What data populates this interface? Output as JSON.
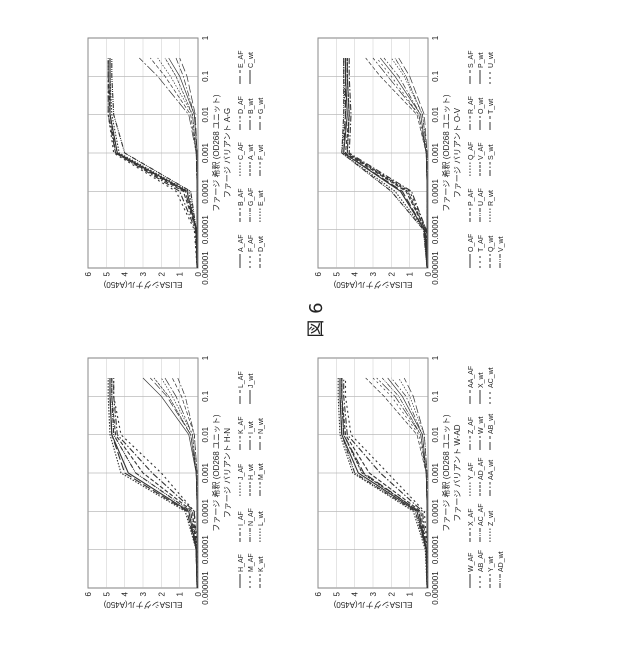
{
  "figure_label": "図 6",
  "chart_data": [
    {
      "type": "line",
      "title": "ファージ バリアント A-G",
      "xlabel": "ファージ 希釈 (OD268 ユニット)",
      "ylabel": "ELISAシグナル(A450)",
      "x_scale": "log",
      "xlim": [
        1e-06,
        1
      ],
      "ylim": [
        0,
        6
      ],
      "grid": true,
      "x_ticks": [
        "0.000001",
        "0.00001",
        "0.0001",
        "0.001",
        "0.01",
        "0.1",
        "1"
      ],
      "y_ticks": [
        "0",
        "1",
        "2",
        "3",
        "4",
        "5",
        "6"
      ],
      "legend": [
        "A_AF",
        "B_AF",
        "C_AF",
        "D_AF",
        "E_AF",
        "F_AF",
        "G_AF",
        "A_wt",
        "B_wt",
        "C_wt",
        "D_wt",
        "E_wt",
        "F_wt",
        "G_wt"
      ],
      "x": [
        1e-06,
        1e-05,
        0.0001,
        0.001,
        0.01,
        0.1,
        0.3
      ],
      "series": [
        {
          "name": "A_AF",
          "values": [
            0.05,
            0.1,
            0.6,
            4.4,
            4.8,
            4.8,
            4.8
          ]
        },
        {
          "name": "B_AF",
          "values": [
            0.05,
            0.1,
            0.8,
            4.5,
            4.8,
            4.9,
            4.9
          ]
        },
        {
          "name": "C_AF",
          "values": [
            0.05,
            0.1,
            0.5,
            4.3,
            4.7,
            4.8,
            4.8
          ]
        },
        {
          "name": "D_AF",
          "values": [
            0.05,
            0.15,
            1.0,
            4.5,
            4.9,
            4.9,
            4.9
          ]
        },
        {
          "name": "E_AF",
          "values": [
            0.05,
            0.1,
            0.7,
            4.4,
            4.8,
            4.8,
            4.8
          ]
        },
        {
          "name": "F_AF",
          "values": [
            0.05,
            0.2,
            1.2,
            4.6,
            4.9,
            4.9,
            4.9
          ]
        },
        {
          "name": "G_AF",
          "values": [
            0.05,
            0.1,
            0.4,
            4.0,
            4.6,
            4.7,
            4.7
          ]
        },
        {
          "name": "A_wt",
          "values": [
            0.05,
            0.05,
            0.05,
            0.1,
            0.3,
            1.2,
            1.8
          ]
        },
        {
          "name": "B_wt",
          "values": [
            0.05,
            0.05,
            0.05,
            0.1,
            0.5,
            2.2,
            3.2
          ]
        },
        {
          "name": "C_wt",
          "values": [
            0.05,
            0.05,
            0.05,
            0.05,
            0.2,
            1.0,
            1.6
          ]
        },
        {
          "name": "D_wt",
          "values": [
            0.05,
            0.05,
            0.05,
            0.1,
            0.4,
            1.8,
            2.6
          ]
        },
        {
          "name": "E_wt",
          "values": [
            0.05,
            0.05,
            0.05,
            0.1,
            0.3,
            1.5,
            2.2
          ]
        },
        {
          "name": "F_wt",
          "values": [
            0.05,
            0.05,
            0.05,
            0.05,
            0.2,
            0.8,
            1.2
          ]
        },
        {
          "name": "G_wt",
          "values": [
            0.05,
            0.05,
            0.05,
            0.05,
            0.15,
            0.6,
            1.0
          ]
        }
      ]
    },
    {
      "type": "line",
      "title": "ファージ バリアント H-N",
      "xlabel": "ファージ 希釈 (OD268 ユニット)",
      "ylabel": "ELISAシグナル(A450)",
      "x_scale": "log",
      "xlim": [
        1e-06,
        1
      ],
      "ylim": [
        0,
        6
      ],
      "grid": true,
      "x_ticks": [
        "0.000001",
        "0.00001",
        "0.0001",
        "0.001",
        "0.01",
        "0.1",
        "1"
      ],
      "y_ticks": [
        "0",
        "1",
        "2",
        "3",
        "4",
        "5",
        "6"
      ],
      "legend": [
        "H_AF",
        "I_AF",
        "J_AF",
        "K_AF",
        "L_AF",
        "M_AF",
        "N_AF",
        "H_wt",
        "I_wt",
        "J_wt",
        "K_wt",
        "L_wt",
        "M_wt",
        "N_wt"
      ],
      "x": [
        1e-06,
        1e-05,
        0.0001,
        0.001,
        0.01,
        0.1,
        0.3
      ],
      "series": [
        {
          "name": "H_AF",
          "values": [
            0.05,
            0.1,
            0.5,
            3.8,
            4.7,
            4.8,
            4.8
          ]
        },
        {
          "name": "I_AF",
          "values": [
            0.05,
            0.1,
            0.3,
            3.0,
            4.5,
            4.7,
            4.7
          ]
        },
        {
          "name": "J_AF",
          "values": [
            0.05,
            0.1,
            0.7,
            4.2,
            4.8,
            4.9,
            4.9
          ]
        },
        {
          "name": "K_AF",
          "values": [
            0.05,
            0.1,
            0.2,
            2.5,
            4.4,
            4.6,
            4.6
          ]
        },
        {
          "name": "L_AF",
          "values": [
            0.05,
            0.1,
            0.6,
            4.0,
            4.7,
            4.8,
            4.8
          ]
        },
        {
          "name": "M_AF",
          "values": [
            0.05,
            0.05,
            0.2,
            2.0,
            4.2,
            4.6,
            4.6
          ]
        },
        {
          "name": "N_AF",
          "values": [
            0.05,
            0.1,
            0.4,
            3.4,
            4.6,
            4.7,
            4.7
          ]
        },
        {
          "name": "H_wt",
          "values": [
            0.05,
            0.05,
            0.05,
            0.1,
            0.4,
            1.6,
            2.4
          ]
        },
        {
          "name": "I_wt",
          "values": [
            0.05,
            0.05,
            0.05,
            0.1,
            0.3,
            1.2,
            1.8
          ]
        },
        {
          "name": "J_wt",
          "values": [
            0.05,
            0.05,
            0.05,
            0.1,
            0.5,
            2.0,
            3.0
          ]
        },
        {
          "name": "K_wt",
          "values": [
            0.05,
            0.05,
            0.05,
            0.05,
            0.2,
            0.9,
            1.4
          ]
        },
        {
          "name": "L_wt",
          "values": [
            0.05,
            0.05,
            0.05,
            0.1,
            0.3,
            1.4,
            2.0
          ]
        },
        {
          "name": "M_wt",
          "values": [
            0.05,
            0.05,
            0.05,
            0.05,
            0.2,
            0.7,
            1.1
          ]
        },
        {
          "name": "N_wt",
          "values": [
            0.05,
            0.05,
            0.05,
            0.1,
            0.4,
            1.7,
            2.6
          ]
        }
      ]
    },
    {
      "type": "line",
      "title": "ファージ バリアント O-V",
      "xlabel": "ファージ 希釈 (OD268 ユニット)",
      "ylabel": "ELISAシグナル(A450)",
      "x_scale": "log",
      "xlim": [
        1e-06,
        1
      ],
      "ylim": [
        0,
        6
      ],
      "grid": true,
      "x_ticks": [
        "0.000001",
        "0.00001",
        "0.0001",
        "0.001",
        "0.01",
        "0.1",
        "1"
      ],
      "y_ticks": [
        "0",
        "1",
        "2",
        "3",
        "4",
        "5",
        "6"
      ],
      "legend": [
        "O_AF",
        "P_AF",
        "Q_AF",
        "R_AF",
        "S_AF",
        "T_AF",
        "U_AF",
        "V_AF",
        "O_wt",
        "P_wt",
        "Q_wt",
        "R_wt",
        "S_wt",
        "T_wt",
        "U_wt",
        "V_wt"
      ],
      "x": [
        1e-06,
        1e-05,
        0.0001,
        0.001,
        0.01,
        0.1,
        0.3
      ],
      "series": [
        {
          "name": "O_AF",
          "values": [
            0.05,
            0.2,
            1.5,
            4.6,
            4.4,
            4.5,
            4.5
          ]
        },
        {
          "name": "P_AF",
          "values": [
            0.05,
            0.15,
            1.2,
            4.5,
            4.3,
            4.4,
            4.4
          ]
        },
        {
          "name": "Q_AF",
          "values": [
            0.05,
            0.2,
            1.8,
            4.7,
            4.5,
            4.6,
            4.6
          ]
        },
        {
          "name": "R_AF",
          "values": [
            0.05,
            0.1,
            0.9,
            4.3,
            4.2,
            4.3,
            4.3
          ]
        },
        {
          "name": "S_AF",
          "values": [
            0.05,
            0.2,
            1.4,
            4.6,
            4.5,
            4.5,
            4.5
          ]
        },
        {
          "name": "T_AF",
          "values": [
            0.05,
            0.1,
            1.0,
            4.4,
            4.3,
            4.4,
            4.4
          ]
        },
        {
          "name": "U_AF",
          "values": [
            0.05,
            0.25,
            2.0,
            4.7,
            4.6,
            4.6,
            4.6
          ]
        },
        {
          "name": "V_AF",
          "values": [
            0.05,
            0.15,
            1.1,
            4.4,
            4.3,
            4.4,
            4.4
          ]
        },
        {
          "name": "O_wt",
          "values": [
            0.05,
            0.05,
            0.05,
            0.1,
            0.5,
            2.2,
            3.0
          ]
        },
        {
          "name": "P_wt",
          "values": [
            0.05,
            0.05,
            0.05,
            0.1,
            0.4,
            1.8,
            2.6
          ]
        },
        {
          "name": "Q_wt",
          "values": [
            0.05,
            0.05,
            0.05,
            0.1,
            0.6,
            2.6,
            3.4
          ]
        },
        {
          "name": "R_wt",
          "values": [
            0.05,
            0.05,
            0.05,
            0.05,
            0.3,
            1.3,
            2.0
          ]
        },
        {
          "name": "S_wt",
          "values": [
            0.05,
            0.05,
            0.05,
            0.1,
            0.4,
            1.6,
            2.4
          ]
        },
        {
          "name": "T_wt",
          "values": [
            0.05,
            0.05,
            0.05,
            0.05,
            0.2,
            1.0,
            1.6
          ]
        },
        {
          "name": "U_wt",
          "values": [
            0.05,
            0.05,
            0.05,
            0.1,
            0.5,
            2.0,
            2.8
          ]
        },
        {
          "name": "V_wt",
          "values": [
            0.05,
            0.05,
            0.05,
            0.05,
            0.3,
            1.2,
            1.8
          ]
        }
      ]
    },
    {
      "type": "line",
      "title": "ファージ バリアント W-AD",
      "xlabel": "ファージ 希釈 (OD268 ユニット)",
      "ylabel": "ELISAシグナル(A450)",
      "x_scale": "log",
      "xlim": [
        1e-06,
        1
      ],
      "ylim": [
        0,
        6
      ],
      "grid": true,
      "x_ticks": [
        "0.000001",
        "0.00001",
        "0.0001",
        "0.001",
        "0.01",
        "0.1",
        "1"
      ],
      "y_ticks": [
        "0",
        "1",
        "2",
        "3",
        "4",
        "5",
        "6"
      ],
      "legend": [
        "W_AF",
        "X_AF",
        "Y_AF",
        "Z_AF",
        "AA_AF",
        "AB_AF",
        "AC_AF",
        "AD_AF",
        "W_wt",
        "X_wt",
        "Y_wt",
        "Z_wt",
        "AA_wt",
        "AB_wt",
        "AC_wt",
        "AD_wt"
      ],
      "x": [
        1e-06,
        1e-05,
        0.0001,
        0.001,
        0.01,
        0.1,
        0.3
      ],
      "series": [
        {
          "name": "W_AF",
          "values": [
            0.05,
            0.1,
            0.6,
            3.8,
            4.7,
            4.8,
            4.8
          ]
        },
        {
          "name": "X_AF",
          "values": [
            0.05,
            0.1,
            0.4,
            3.2,
            4.5,
            4.7,
            4.7
          ]
        },
        {
          "name": "Y_AF",
          "values": [
            0.05,
            0.15,
            0.8,
            4.1,
            4.8,
            4.9,
            4.9
          ]
        },
        {
          "name": "Z_AF",
          "values": [
            0.05,
            0.1,
            0.3,
            2.6,
            4.4,
            4.6,
            4.6
          ]
        },
        {
          "name": "AA_AF",
          "values": [
            0.05,
            0.1,
            0.5,
            3.5,
            4.6,
            4.7,
            4.7
          ]
        },
        {
          "name": "AB_AF",
          "values": [
            0.05,
            0.05,
            0.2,
            2.2,
            4.2,
            4.5,
            4.5
          ]
        },
        {
          "name": "AC_AF",
          "values": [
            0.05,
            0.1,
            0.7,
            4.0,
            4.7,
            4.8,
            4.8
          ]
        },
        {
          "name": "AD_AF",
          "values": [
            0.05,
            0.1,
            0.5,
            3.6,
            4.6,
            4.7,
            4.7
          ]
        },
        {
          "name": "W_wt",
          "values": [
            0.05,
            0.05,
            0.05,
            0.1,
            0.4,
            1.8,
            2.8
          ]
        },
        {
          "name": "X_wt",
          "values": [
            0.05,
            0.05,
            0.05,
            0.1,
            0.3,
            1.4,
            2.2
          ]
        },
        {
          "name": "Y_wt",
          "values": [
            0.05,
            0.05,
            0.05,
            0.1,
            0.6,
            2.4,
            3.4
          ]
        },
        {
          "name": "Z_wt",
          "values": [
            0.05,
            0.05,
            0.05,
            0.05,
            0.2,
            1.0,
            1.6
          ]
        },
        {
          "name": "AA_wt",
          "values": [
            0.05,
            0.05,
            0.05,
            0.1,
            0.3,
            1.2,
            2.0
          ]
        },
        {
          "name": "AB_wt",
          "values": [
            0.05,
            0.05,
            0.05,
            0.05,
            0.2,
            0.8,
            1.3
          ]
        },
        {
          "name": "AC_wt",
          "values": [
            0.05,
            0.05,
            0.05,
            0.1,
            0.5,
            2.0,
            3.0
          ]
        },
        {
          "name": "AD_wt",
          "values": [
            0.05,
            0.05,
            0.05,
            0.1,
            0.4,
            1.6,
            2.5
          ]
        }
      ]
    }
  ]
}
